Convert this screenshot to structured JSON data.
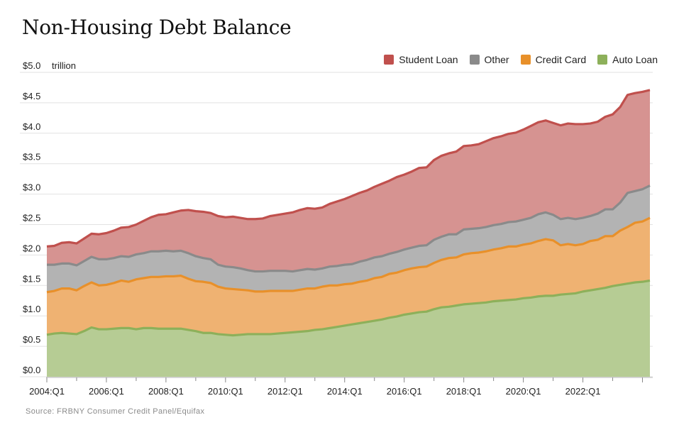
{
  "chart_data": {
    "type": "area",
    "title": "Non-Housing Debt Balance",
    "unit_label": "trillion",
    "source": "Source: FRBNY Consumer Credit Panel/Equifax",
    "ylim": [
      0,
      5.0
    ],
    "y_ticks": [
      "$0.0",
      "$0.5",
      "$1.0",
      "$1.5",
      "$2.0",
      "$2.5",
      "$3.0",
      "$3.5",
      "$4.0",
      "$4.5",
      "$5.0"
    ],
    "y_tick_values": [
      0,
      0.5,
      1.0,
      1.5,
      2.0,
      2.5,
      3.0,
      3.5,
      4.0,
      4.5,
      5.0
    ],
    "x_ticks": [
      "2004:Q1",
      "2006:Q1",
      "2008:Q1",
      "2010:Q1",
      "2012:Q1",
      "2014:Q1",
      "2016:Q1",
      "2018:Q1",
      "2020:Q1",
      "2022:Q1"
    ],
    "x_start": "2004:Q1",
    "x_end": "2023:Q2",
    "grid": true,
    "legend_position": "top-right",
    "series": [
      {
        "name": "Auto Loan",
        "color": "#8db05a",
        "fill": "#b6cc94",
        "values": [
          0.69,
          0.71,
          0.72,
          0.71,
          0.7,
          0.75,
          0.81,
          0.78,
          0.78,
          0.79,
          0.8,
          0.8,
          0.78,
          0.8,
          0.8,
          0.79,
          0.79,
          0.79,
          0.79,
          0.77,
          0.75,
          0.72,
          0.72,
          0.7,
          0.69,
          0.68,
          0.69,
          0.7,
          0.7,
          0.7,
          0.7,
          0.71,
          0.72,
          0.73,
          0.74,
          0.75,
          0.77,
          0.78,
          0.8,
          0.82,
          0.84,
          0.86,
          0.88,
          0.9,
          0.92,
          0.94,
          0.97,
          0.99,
          1.02,
          1.04,
          1.06,
          1.07,
          1.11,
          1.14,
          1.15,
          1.17,
          1.19,
          1.2,
          1.21,
          1.22,
          1.24,
          1.25,
          1.26,
          1.27,
          1.29,
          1.3,
          1.32,
          1.33,
          1.33,
          1.35,
          1.36,
          1.37,
          1.4,
          1.42,
          1.44,
          1.46,
          1.49,
          1.51,
          1.53,
          1.55,
          1.56,
          1.58
        ]
      },
      {
        "name": "Credit Card",
        "color": "#e8902a",
        "fill": "#efb272",
        "values": [
          0.7,
          0.7,
          0.73,
          0.74,
          0.72,
          0.74,
          0.74,
          0.72,
          0.73,
          0.75,
          0.78,
          0.76,
          0.82,
          0.82,
          0.84,
          0.85,
          0.86,
          0.86,
          0.87,
          0.84,
          0.82,
          0.84,
          0.82,
          0.78,
          0.76,
          0.76,
          0.74,
          0.72,
          0.7,
          0.7,
          0.71,
          0.7,
          0.69,
          0.68,
          0.69,
          0.7,
          0.68,
          0.7,
          0.7,
          0.68,
          0.68,
          0.67,
          0.68,
          0.68,
          0.7,
          0.7,
          0.72,
          0.72,
          0.73,
          0.74,
          0.74,
          0.74,
          0.76,
          0.78,
          0.8,
          0.79,
          0.82,
          0.83,
          0.83,
          0.84,
          0.85,
          0.86,
          0.88,
          0.87,
          0.88,
          0.89,
          0.91,
          0.93,
          0.91,
          0.81,
          0.82,
          0.79,
          0.78,
          0.81,
          0.81,
          0.85,
          0.82,
          0.89,
          0.93,
          0.98,
          0.99,
          1.03
        ]
      },
      {
        "name": "Other",
        "color": "#8a8a8a",
        "fill": "#b3b3b3",
        "values": [
          0.45,
          0.43,
          0.41,
          0.41,
          0.41,
          0.41,
          0.42,
          0.43,
          0.42,
          0.41,
          0.4,
          0.41,
          0.41,
          0.41,
          0.42,
          0.42,
          0.42,
          0.41,
          0.41,
          0.42,
          0.41,
          0.39,
          0.39,
          0.36,
          0.36,
          0.36,
          0.35,
          0.33,
          0.33,
          0.33,
          0.33,
          0.33,
          0.33,
          0.32,
          0.32,
          0.32,
          0.31,
          0.3,
          0.31,
          0.32,
          0.32,
          0.32,
          0.33,
          0.34,
          0.34,
          0.34,
          0.33,
          0.34,
          0.34,
          0.34,
          0.35,
          0.35,
          0.38,
          0.38,
          0.39,
          0.38,
          0.41,
          0.4,
          0.4,
          0.4,
          0.4,
          0.4,
          0.4,
          0.41,
          0.41,
          0.42,
          0.44,
          0.44,
          0.42,
          0.43,
          0.43,
          0.43,
          0.43,
          0.41,
          0.43,
          0.44,
          0.44,
          0.46,
          0.56,
          0.52,
          0.53,
          0.53
        ]
      },
      {
        "name": "Student Loan",
        "color": "#c0504d",
        "fill": "#d69391",
        "values": [
          0.3,
          0.31,
          0.34,
          0.35,
          0.36,
          0.37,
          0.38,
          0.41,
          0.43,
          0.45,
          0.47,
          0.49,
          0.49,
          0.53,
          0.56,
          0.6,
          0.6,
          0.64,
          0.66,
          0.71,
          0.74,
          0.76,
          0.76,
          0.8,
          0.81,
          0.83,
          0.83,
          0.84,
          0.86,
          0.87,
          0.9,
          0.92,
          0.94,
          0.97,
          0.99,
          1.0,
          1.0,
          1.0,
          1.03,
          1.06,
          1.08,
          1.12,
          1.13,
          1.14,
          1.16,
          1.19,
          1.2,
          1.23,
          1.23,
          1.25,
          1.28,
          1.28,
          1.31,
          1.33,
          1.33,
          1.36,
          1.37,
          1.37,
          1.38,
          1.41,
          1.43,
          1.44,
          1.45,
          1.46,
          1.48,
          1.51,
          1.51,
          1.51,
          1.51,
          1.54,
          1.55,
          1.56,
          1.54,
          1.52,
          1.51,
          1.52,
          1.56,
          1.57,
          1.61,
          1.61,
          1.6,
          1.57
        ]
      }
    ]
  }
}
